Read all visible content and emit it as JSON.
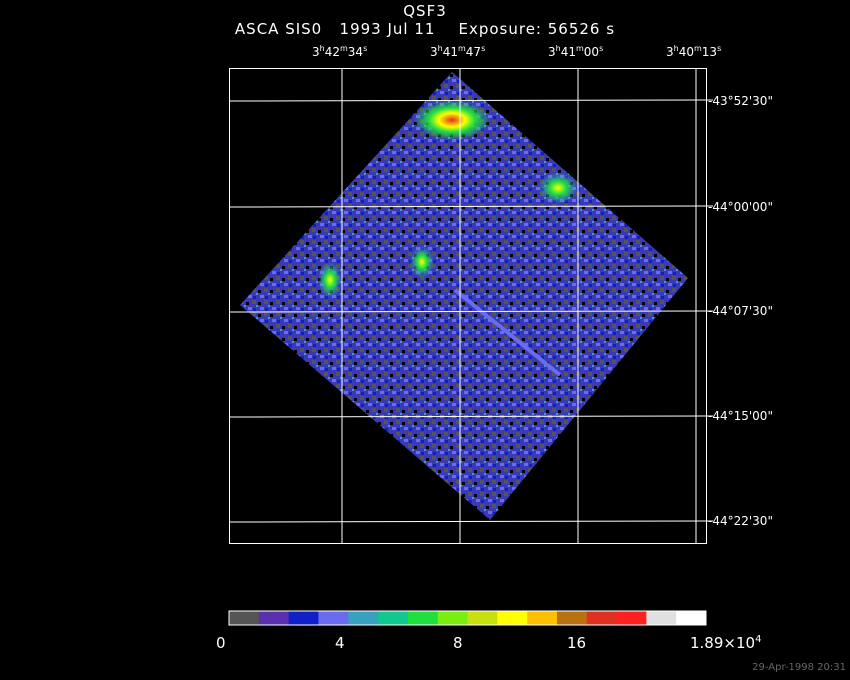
{
  "header": {
    "object": "QSF3",
    "line2": "ASCA SIS0   1993 Jul 11    Exposure: 56526 s"
  },
  "ra_labels": [
    {
      "h": "3",
      "m": "42",
      "s": "34"
    },
    {
      "h": "3",
      "m": "41",
      "s": "47"
    },
    {
      "h": "3",
      "m": "41",
      "s": "00"
    },
    {
      "h": "3",
      "m": "40",
      "s": "13"
    }
  ],
  "dec_labels": [
    "-43°52'30\"",
    "-44°00'00\"",
    "-44°07'30\"",
    "-44°15'00\"",
    "-44°22'30\""
  ],
  "colorbar": {
    "colors": [
      "#555555",
      "#5a2fb0",
      "#1020c8",
      "#6b6bf0",
      "#3aa0c0",
      "#10c890",
      "#20e040",
      "#7aee10",
      "#c8e010",
      "#ffff00",
      "#ffc000",
      "#b87010",
      "#e03020",
      "#ff2020",
      "#e0e0e0",
      "#ffffff"
    ],
    "labels": [
      "0",
      "4",
      "8",
      "16",
      "1.89×10"
    ],
    "exp": "4"
  },
  "timestamp": "29-Apr-1998 20:31"
}
